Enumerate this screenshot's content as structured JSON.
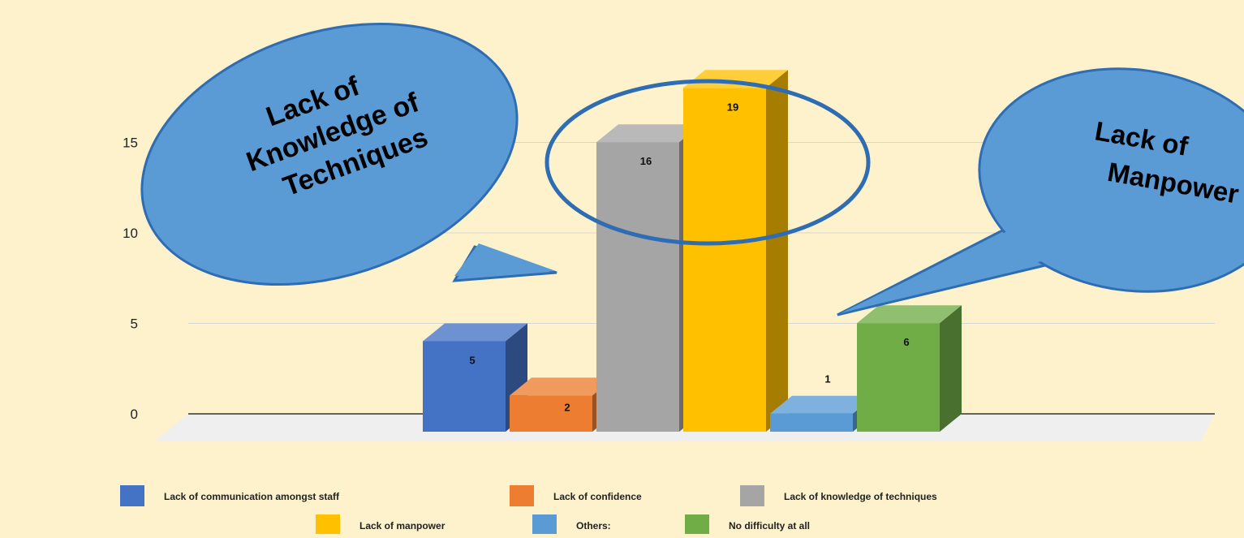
{
  "chart_data": {
    "type": "bar",
    "title": "",
    "xlabel": "",
    "ylabel": "",
    "ylim": [
      0,
      22
    ],
    "yticks": [
      0,
      5,
      10,
      15
    ],
    "grid": true,
    "legend_position": "bottom",
    "categories": [
      "Lack of communication amongst staff",
      "Lack of confidence",
      "Lack of knowledge of techniques",
      "Lack of manpower",
      "Others:",
      "No difficulty at all"
    ],
    "values": [
      5,
      2,
      16,
      19,
      1,
      6
    ],
    "colors": [
      "#4472C4",
      "#ED7D31",
      "#A5A5A5",
      "#FFC000",
      "#5B9BD5",
      "#70AD47"
    ],
    "annotations": [
      {
        "text_lines": [
          "Lack of",
          "Knowledge of",
          "Techniques"
        ],
        "points_to": "Lack of knowledge of techniques"
      },
      {
        "text_lines": [
          "Lack of",
          "Manpower"
        ],
        "points_to": "Lack of manpower"
      }
    ],
    "highlight": {
      "shape": "ellipse",
      "color": "#2E6DB4",
      "around": [
        "Lack of knowledge of techniques",
        "Lack of manpower"
      ]
    }
  }
}
